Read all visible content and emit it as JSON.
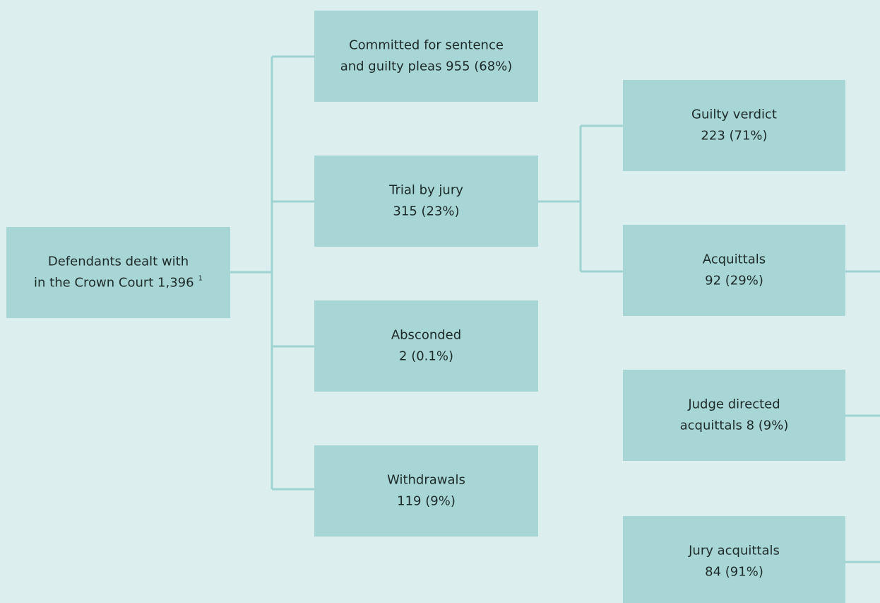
{
  "nodes": [
    {
      "lines": [
        "Defendants dealt with",
        "in the Crown Court 1,396"
      ],
      "note": "1"
    },
    {
      "lines": [
        "Committed for sentence",
        "and guilty pleas 955 (68%)"
      ]
    },
    {
      "lines": [
        "Trial by jury",
        "315 (23%)"
      ]
    },
    {
      "lines": [
        "Absconded",
        "2 (0.1%)"
      ]
    },
    {
      "lines": [
        "Withdrawals",
        "119 (9%)"
      ]
    },
    {
      "lines": [
        "Guilty verdict",
        "223 (71%)"
      ]
    },
    {
      "lines": [
        "Acquittals",
        "92 (29%)"
      ]
    },
    {
      "lines": [
        "Judge directed",
        "acquittals 8 (9%)"
      ]
    },
    {
      "lines": [
        "Jury acquittals",
        "84 (91%)"
      ]
    }
  ]
}
